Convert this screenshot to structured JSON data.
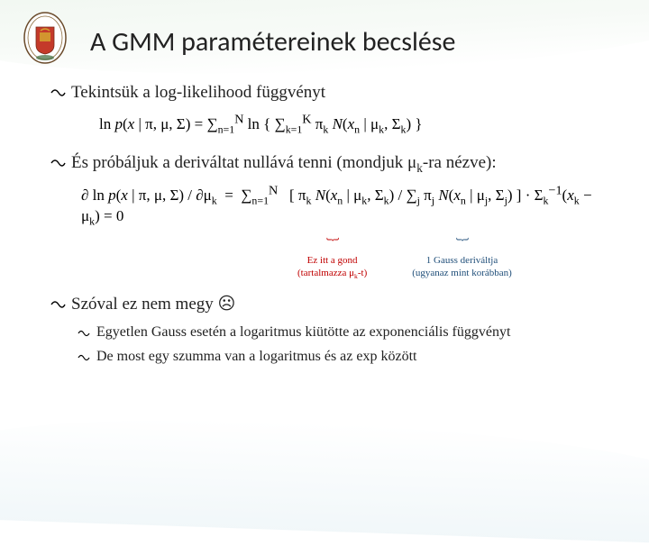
{
  "title": "A GMM paramétereinek becslése",
  "bullets": {
    "b1": "Tekintsük a log-likelihood függvényt",
    "b2_pre": "És próbáljuk a deriváltat nullává tenni (mondjuk ",
    "b2_mu": "μ",
    "b2_sub": "k",
    "b2_post": "-ra nézve):",
    "b3": "Szóval ez nem megy ☹"
  },
  "sub_bullets": {
    "s1": "Egyetlen Gauss esetén a logaritmus kiütötte az exponenciális függvényt",
    "s2": "De most egy szumma van a logaritmus és az exp között"
  },
  "equations": {
    "eq1_html": "ln <i>p</i>(<i>x</i> | π, μ, Σ) = ∑<sub>n=1</sub><sup>N</sup> ln { ∑<sub>k=1</sub><sup>K</sup> π<sub>k</sub> <i>N</i>(<i>x</i><sub>n</sub> | μ<sub>k</sub>, Σ<sub>k</sub>) }",
    "eq2_html": "∂ ln <i>p</i>(<i>x</i> | π, μ, Σ) / ∂μ<sub>k</sub> &nbsp;=&nbsp; ∑<sub>n=1</sub><sup>N</sup> &nbsp; [ π<sub>k</sub> <i>N</i>(<i>x</i><sub>n</sub> | μ<sub>k</sub>, Σ<sub>k</sub>) / ∑<sub>j</sub> π<sub>j</sub> <i>N</i>(<i>x</i><sub>n</sub> | μ<sub>j</sub>, Σ<sub>j</sub>) ] · Σ<sub>k</sub><sup>−1</sup>(<i>x</i><sub>k</sub> − μ<sub>k</sub>) = 0"
  },
  "annotations": {
    "left_l1": "Ez itt a gond",
    "left_l2_pre": "(tartalmazza μ",
    "left_l2_sub": "k",
    "left_l2_post": "-t)",
    "right_l1": "1 Gauss deriváltja",
    "right_l2": "(ugyanaz mint korábban)"
  },
  "colors": {
    "annot_red": "#c00000",
    "annot_blue": "#1f4e79",
    "text": "#222222",
    "bg": "#ffffff"
  }
}
